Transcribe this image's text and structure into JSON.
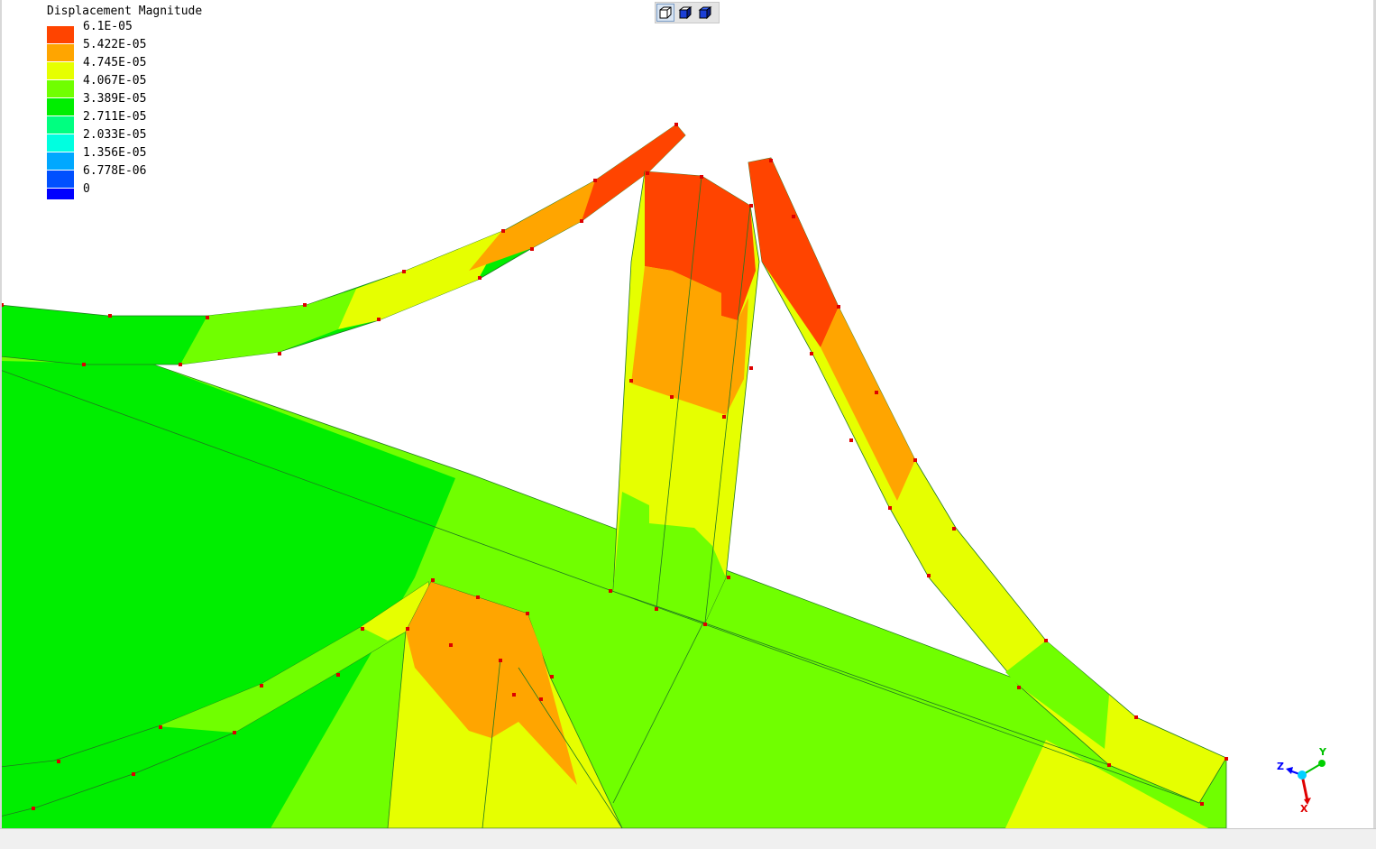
{
  "legend": {
    "title": "Displacement Magnitude",
    "items": [
      {
        "value": "6.1E-05",
        "color": "#ff4400"
      },
      {
        "value": "5.422E-05",
        "color": "#ffa500"
      },
      {
        "value": "4.745E-05",
        "color": "#e6ff00"
      },
      {
        "value": "4.067E-05",
        "color": "#70ff00"
      },
      {
        "value": "3.389E-05",
        "color": "#00ee00"
      },
      {
        "value": "2.711E-05",
        "color": "#00ff80"
      },
      {
        "value": "2.033E-05",
        "color": "#00ffe0"
      },
      {
        "value": "1.356E-05",
        "color": "#00a8ff"
      },
      {
        "value": "6.778E-06",
        "color": "#0050ff"
      },
      {
        "value": "0",
        "color": "#0000ff"
      }
    ]
  },
  "toolbar": {
    "buttons": [
      {
        "icon": "wireframe-cube-icon",
        "active": true
      },
      {
        "icon": "shaded-cube-icon",
        "active": false
      },
      {
        "icon": "solid-cube-icon",
        "active": false
      }
    ]
  },
  "triad": {
    "x_label": "X",
    "y_label": "Y",
    "z_label": "Z"
  }
}
